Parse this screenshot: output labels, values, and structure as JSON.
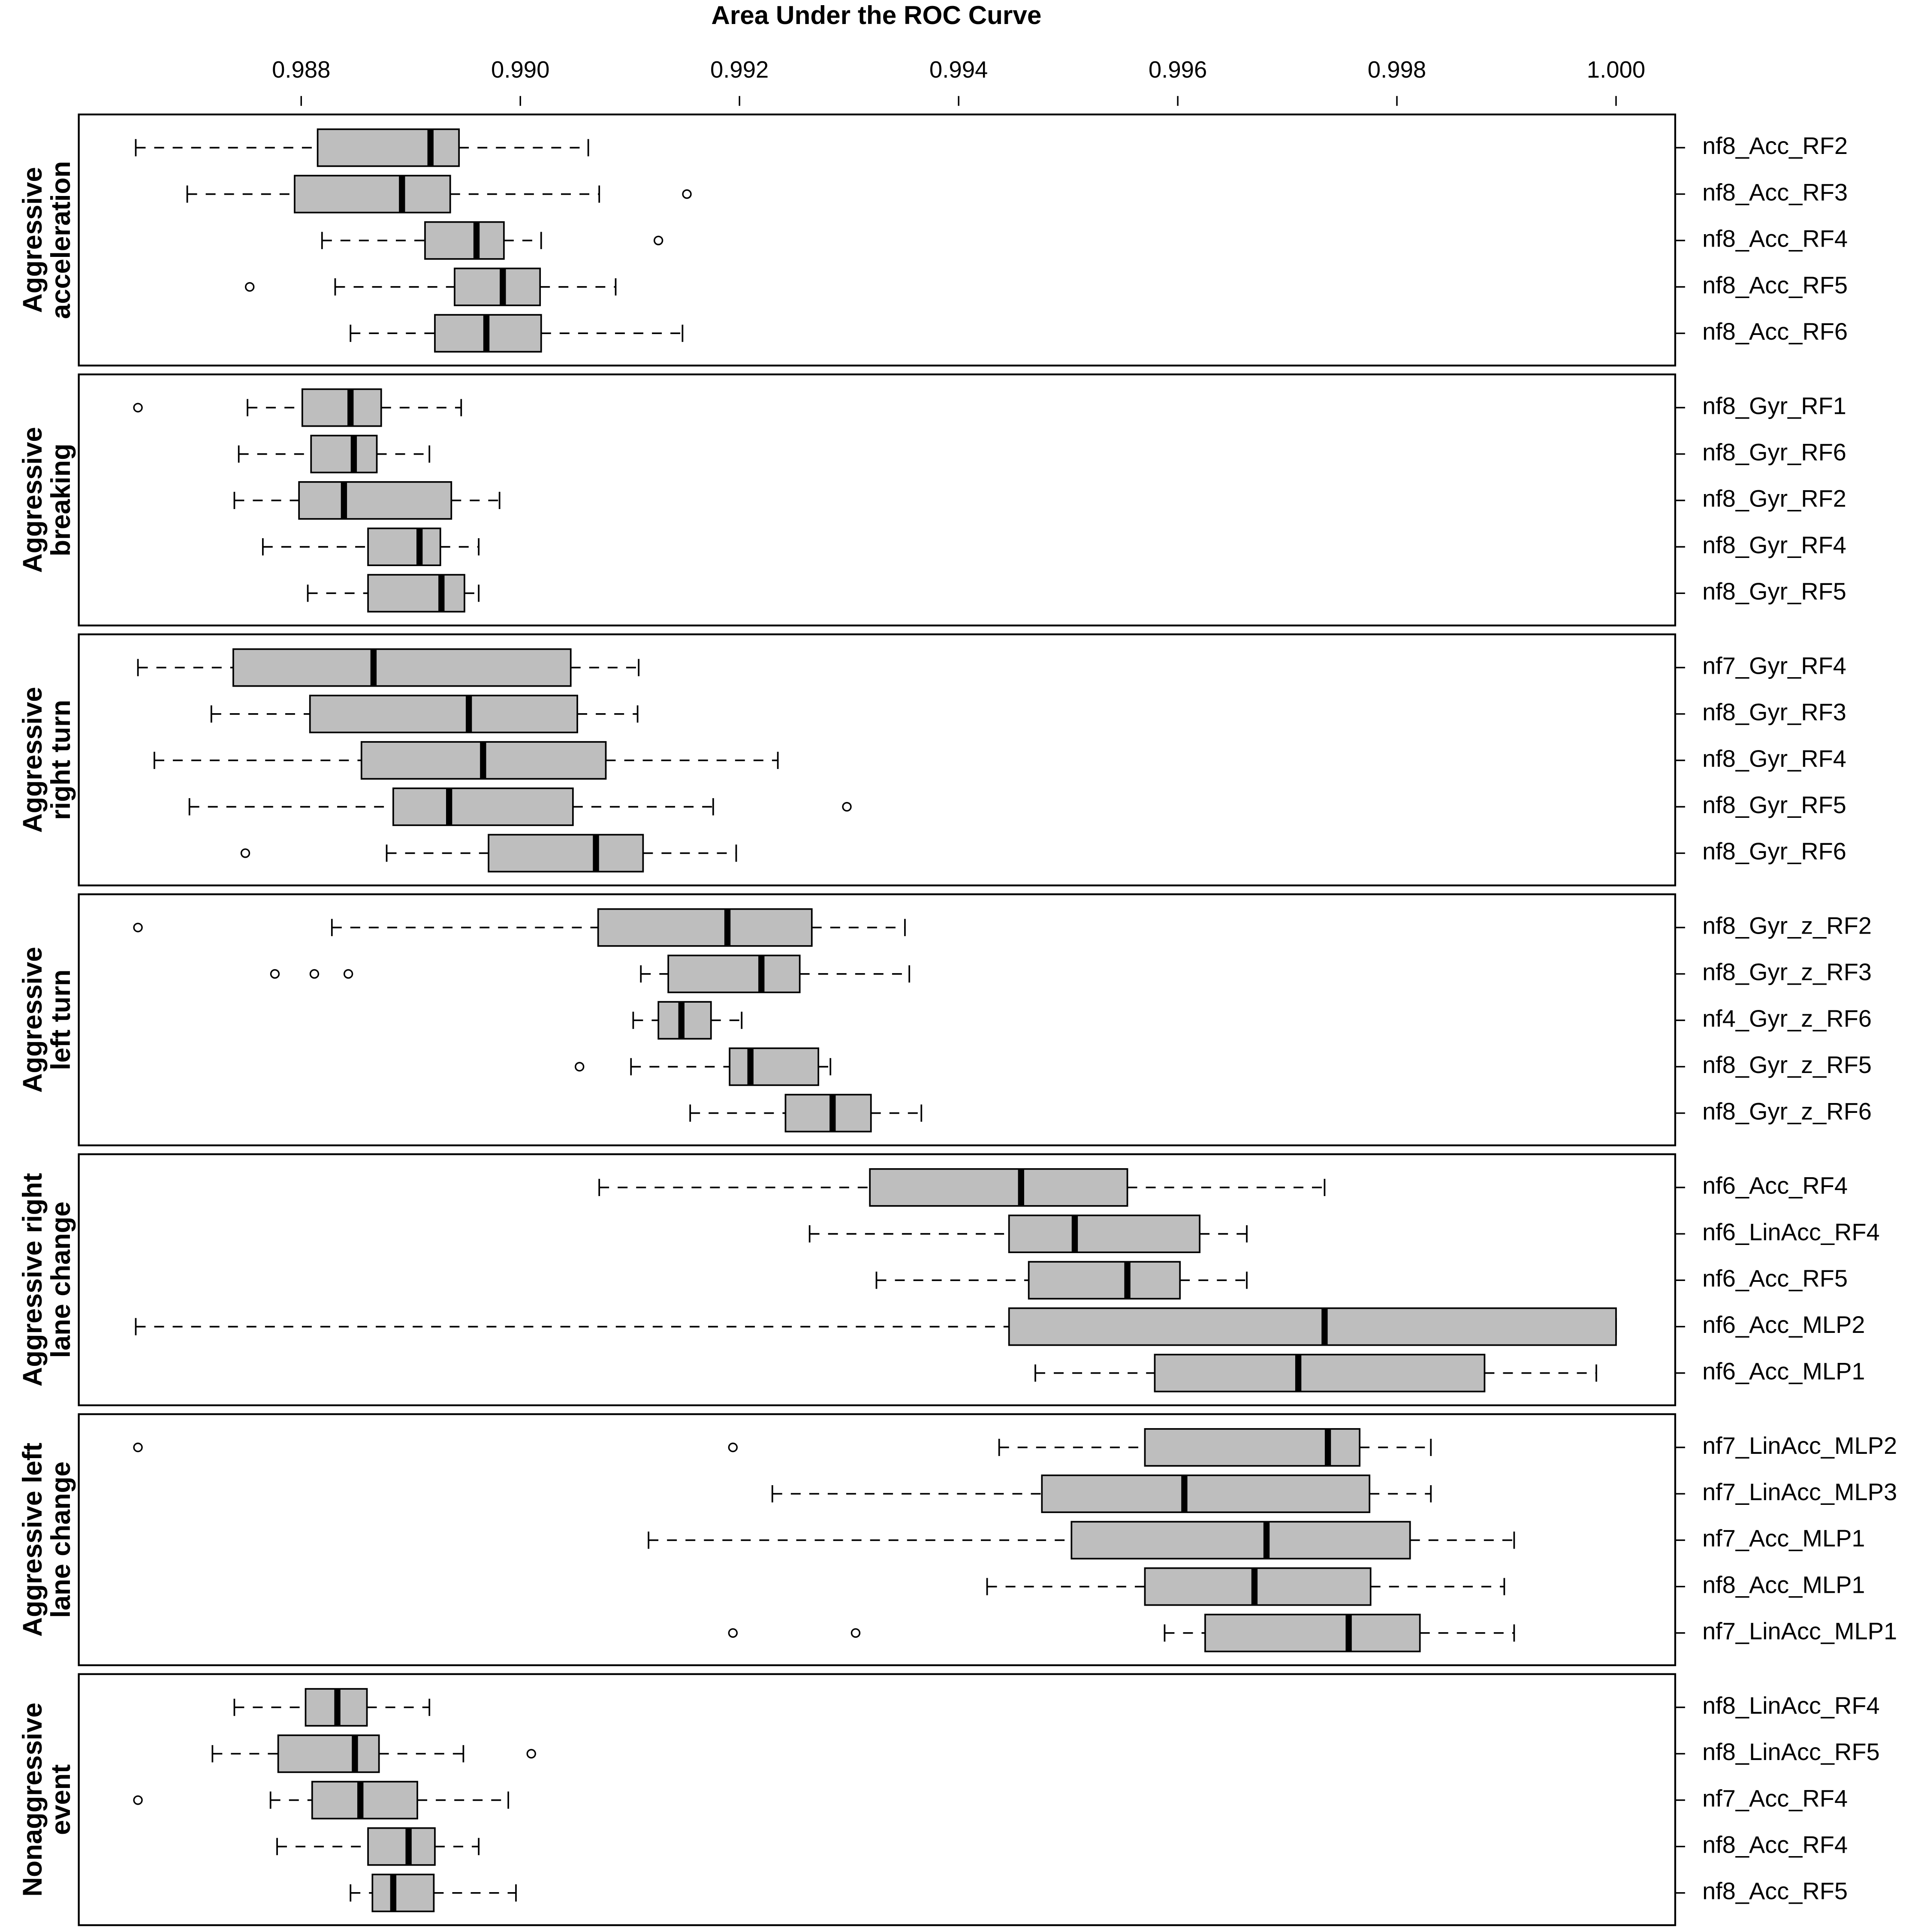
{
  "chart_data": {
    "type": "boxplot",
    "title": "Area Under the ROC Curve",
    "box_color": "#bebebe",
    "xlim": [
      0.98597,
      1.00054
    ],
    "xticks": [
      0.988,
      {
        "value": 0.99,
        "label": "0.990"
      },
      0.992,
      0.994,
      0.996,
      0.998,
      {
        "value": 1,
        "label": "1.000"
      }
    ],
    "panels": [
      {
        "label": [
          "Aggressive",
          "acceleration"
        ],
        "categories": [
          "nf8_Acc_RF2",
          "nf8_Acc_RF3",
          "nf8_Acc_RF4",
          "nf8_Acc_RF5",
          "nf8_Acc_RF6"
        ],
        "boxes": [
          {
            "whislo": 0.98649,
            "q1": 0.98815,
            "med": 0.98918,
            "q3": 0.98944,
            "whishi": 0.99062,
            "fliers": []
          },
          {
            "whislo": 0.98696,
            "q1": 0.98794,
            "med": 0.98892,
            "q3": 0.98936,
            "whishi": 0.99072,
            "fliers": [
              0.99152
            ]
          },
          {
            "whislo": 0.98819,
            "q1": 0.98913,
            "med": 0.9896,
            "q3": 0.98985,
            "whishi": 0.99019,
            "fliers": [
              0.99126
            ]
          },
          {
            "whislo": 0.98831,
            "q1": 0.9894,
            "med": 0.98984,
            "q3": 0.99018,
            "whishi": 0.99087,
            "fliers": [
              0.98753
            ]
          },
          {
            "whislo": 0.98845,
            "q1": 0.98922,
            "med": 0.98969,
            "q3": 0.99019,
            "whishi": 0.99148,
            "fliers": []
          }
        ]
      },
      {
        "label": [
          "Aggressive",
          "breaking"
        ],
        "categories": [
          "nf8_Gyr_RF1",
          "nf8_Gyr_RF6",
          "nf8_Gyr_RF2",
          "nf8_Gyr_RF4",
          "nf8_Gyr_RF5"
        ],
        "boxes": [
          {
            "whislo": 0.98751,
            "q1": 0.98801,
            "med": 0.98845,
            "q3": 0.98873,
            "whishi": 0.98946,
            "fliers": [
              0.98651
            ]
          },
          {
            "whislo": 0.98743,
            "q1": 0.98809,
            "med": 0.98848,
            "q3": 0.98869,
            "whishi": 0.98917,
            "fliers": []
          },
          {
            "whislo": 0.98739,
            "q1": 0.98798,
            "med": 0.98839,
            "q3": 0.98937,
            "whishi": 0.98981,
            "fliers": []
          },
          {
            "whislo": 0.98765,
            "q1": 0.98861,
            "med": 0.98908,
            "q3": 0.98927,
            "whishi": 0.98962,
            "fliers": []
          },
          {
            "whislo": 0.98806,
            "q1": 0.98861,
            "med": 0.98928,
            "q3": 0.98949,
            "whishi": 0.98962,
            "fliers": []
          }
        ]
      },
      {
        "label": [
          "Aggressive",
          "right turn"
        ],
        "categories": [
          "nf7_Gyr_RF4",
          "nf8_Gyr_RF3",
          "nf8_Gyr_RF4",
          "nf8_Gyr_RF5",
          "nf8_Gyr_RF6"
        ],
        "boxes": [
          {
            "whislo": 0.98651,
            "q1": 0.98738,
            "med": 0.98866,
            "q3": 0.99046,
            "whishi": 0.99108,
            "fliers": []
          },
          {
            "whislo": 0.98718,
            "q1": 0.98808,
            "med": 0.98953,
            "q3": 0.99052,
            "whishi": 0.99107,
            "fliers": []
          },
          {
            "whislo": 0.98666,
            "q1": 0.98855,
            "med": 0.98966,
            "q3": 0.99078,
            "whishi": 0.99235,
            "fliers": []
          },
          {
            "whislo": 0.98698,
            "q1": 0.98884,
            "med": 0.98935,
            "q3": 0.99048,
            "whishi": 0.99176,
            "fliers": [
              0.99298
            ]
          },
          {
            "whislo": 0.98878,
            "q1": 0.98971,
            "med": 0.99069,
            "q3": 0.99112,
            "whishi": 0.99197,
            "fliers": [
              0.98749
            ]
          }
        ]
      },
      {
        "label": [
          "Aggressive",
          "left turn"
        ],
        "categories": [
          "nf8_Gyr_z_RF2",
          "nf8_Gyr_z_RF3",
          "nf4_Gyr_z_RF6",
          "nf8_Gyr_z_RF5",
          "nf8_Gyr_z_RF6"
        ],
        "boxes": [
          {
            "whislo": 0.98828,
            "q1": 0.99071,
            "med": 0.99189,
            "q3": 0.99266,
            "whishi": 0.99351,
            "fliers": [
              0.98651
            ]
          },
          {
            "whislo": 0.9911,
            "q1": 0.99135,
            "med": 0.9922,
            "q3": 0.99255,
            "whishi": 0.99355,
            "fliers": [
              0.98776,
              0.98812,
              0.98843
            ]
          },
          {
            "whislo": 0.99103,
            "q1": 0.99126,
            "med": 0.99147,
            "q3": 0.99174,
            "whishi": 0.99202,
            "fliers": []
          },
          {
            "whislo": 0.99101,
            "q1": 0.99191,
            "med": 0.9921,
            "q3": 0.99272,
            "whishi": 0.99283,
            "fliers": [
              0.99054
            ]
          },
          {
            "whislo": 0.99155,
            "q1": 0.99242,
            "med": 0.99285,
            "q3": 0.9932,
            "whishi": 0.99366,
            "fliers": []
          }
        ]
      },
      {
        "label": [
          "Aggressive right",
          "lane change"
        ],
        "categories": [
          "nf6_Acc_RF4",
          "nf6_LinAcc_RF4",
          "nf6_Acc_RF5",
          "nf6_Acc_MLP2",
          "nf6_Acc_MLP1"
        ],
        "boxes": [
          {
            "whislo": 0.99072,
            "q1": 0.99319,
            "med": 0.99457,
            "q3": 0.99554,
            "whishi": 0.99734,
            "fliers": []
          },
          {
            "whislo": 0.99264,
            "q1": 0.99446,
            "med": 0.99506,
            "q3": 0.9962,
            "whishi": 0.99663,
            "fliers": []
          },
          {
            "whislo": 0.99325,
            "q1": 0.99464,
            "med": 0.99554,
            "q3": 0.99602,
            "whishi": 0.99663,
            "fliers": []
          },
          {
            "whislo": 0.98649,
            "q1": 0.99446,
            "med": 0.99734,
            "q3": 1,
            "whishi": 1,
            "fliers": []
          },
          {
            "whislo": 0.9947,
            "q1": 0.99579,
            "med": 0.9971,
            "q3": 0.9988,
            "whishi": 0.99982,
            "fliers": []
          }
        ]
      },
      {
        "label": [
          "Aggressive left",
          "lane change"
        ],
        "categories": [
          "nf7_LinAcc_MLP2",
          "nf7_LinAcc_MLP3",
          "nf7_Acc_MLP1",
          "nf8_Acc_MLP1",
          "nf7_LinAcc_MLP1"
        ],
        "boxes": [
          {
            "whislo": 0.99437,
            "q1": 0.9957,
            "med": 0.99737,
            "q3": 0.99766,
            "whishi": 0.99831,
            "fliers": [
              0.98651,
              0.99194
            ]
          },
          {
            "whislo": 0.9923,
            "q1": 0.99476,
            "med": 0.99606,
            "q3": 0.99775,
            "whishi": 0.99831,
            "fliers": []
          },
          {
            "whislo": 0.99117,
            "q1": 0.99503,
            "med": 0.99681,
            "q3": 0.99812,
            "whishi": 0.99907,
            "fliers": []
          },
          {
            "whislo": 0.99426,
            "q1": 0.9957,
            "med": 0.9967,
            "q3": 0.99776,
            "whishi": 0.99898,
            "fliers": []
          },
          {
            "whislo": 0.99588,
            "q1": 0.99625,
            "med": 0.99756,
            "q3": 0.99821,
            "whishi": 0.99907,
            "fliers": [
              0.99194,
              0.99306
            ]
          }
        ]
      },
      {
        "label": [
          "Nonaggressive",
          "event"
        ],
        "categories": [
          "nf8_LinAcc_RF4",
          "nf8_LinAcc_RF5",
          "nf7_Acc_RF4",
          "nf8_Acc_RF4",
          "nf8_Acc_RF5"
        ],
        "boxes": [
          {
            "whislo": 0.98739,
            "q1": 0.98804,
            "med": 0.98833,
            "q3": 0.9886,
            "whishi": 0.98917,
            "fliers": []
          },
          {
            "whislo": 0.98719,
            "q1": 0.98779,
            "med": 0.98849,
            "q3": 0.98871,
            "whishi": 0.98948,
            "fliers": [
              0.9901
            ]
          },
          {
            "whislo": 0.98772,
            "q1": 0.9881,
            "med": 0.98854,
            "q3": 0.98906,
            "whishi": 0.98989,
            "fliers": [
              0.98651
            ]
          },
          {
            "whislo": 0.98778,
            "q1": 0.98861,
            "med": 0.98898,
            "q3": 0.98922,
            "whishi": 0.98962,
            "fliers": []
          },
          {
            "whislo": 0.98845,
            "q1": 0.98865,
            "med": 0.98884,
            "q3": 0.98921,
            "whishi": 0.98996,
            "fliers": []
          }
        ]
      }
    ]
  }
}
